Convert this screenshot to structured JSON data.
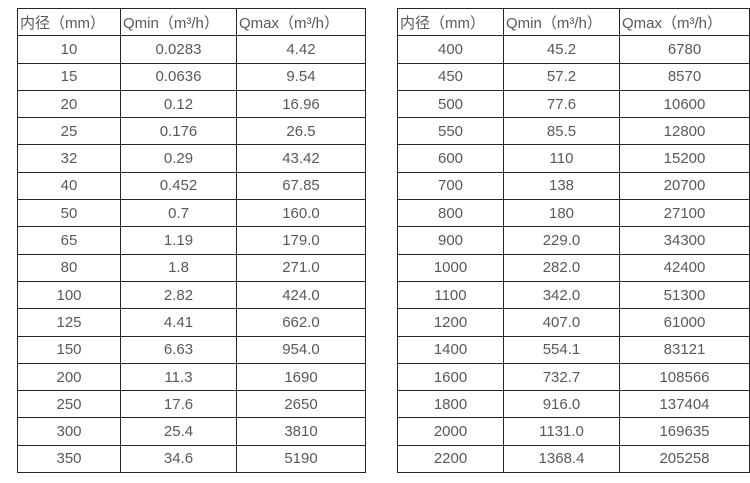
{
  "page": {
    "background_color": "#ffffff",
    "text_color": "#595959",
    "border_color": "#262626"
  },
  "tables": [
    {
      "name": "flow-table-small-diameters",
      "headers": [
        "内径（mm）",
        "Qmin（m³/h）",
        "Qmax（m³/h）"
      ],
      "rows": [
        [
          "10",
          "0.0283",
          "4.42"
        ],
        [
          "15",
          "0.0636",
          "9.54"
        ],
        [
          "20",
          "0.12",
          "16.96"
        ],
        [
          "25",
          "0.176",
          "26.5"
        ],
        [
          "32",
          "0.29",
          "43.42"
        ],
        [
          "40",
          "0.452",
          "67.85"
        ],
        [
          "50",
          "0.7",
          "160.0"
        ],
        [
          "65",
          "1.19",
          "179.0"
        ],
        [
          "80",
          "1.8",
          "271.0"
        ],
        [
          "100",
          "2.82",
          "424.0"
        ],
        [
          "125",
          "4.41",
          "662.0"
        ],
        [
          "150",
          "6.63",
          "954.0"
        ],
        [
          "200",
          "11.3",
          "1690"
        ],
        [
          "250",
          "17.6",
          "2650"
        ],
        [
          "300",
          "25.4",
          "3810"
        ],
        [
          "350",
          "34.6",
          "5190"
        ]
      ]
    },
    {
      "name": "flow-table-large-diameters",
      "headers": [
        "内径（mm）",
        "Qmin（m³/h）",
        "Qmax（m³/h）"
      ],
      "rows": [
        [
          "400",
          "45.2",
          "6780"
        ],
        [
          "450",
          "57.2",
          "8570"
        ],
        [
          "500",
          "77.6",
          "10600"
        ],
        [
          "550",
          "85.5",
          "12800"
        ],
        [
          "600",
          "110",
          "15200"
        ],
        [
          "700",
          "138",
          "20700"
        ],
        [
          "800",
          "180",
          "27100"
        ],
        [
          "900",
          "229.0",
          "34300"
        ],
        [
          "1000",
          "282.0",
          "42400"
        ],
        [
          "1100",
          "342.0",
          "51300"
        ],
        [
          "1200",
          "407.0",
          "61000"
        ],
        [
          "1400",
          "554.1",
          "83121"
        ],
        [
          "1600",
          "732.7",
          "108566"
        ],
        [
          "1800",
          "916.0",
          "137404"
        ],
        [
          "2000",
          "1131.0",
          "169635"
        ],
        [
          "2200",
          "1368.4",
          "205258"
        ]
      ]
    }
  ]
}
